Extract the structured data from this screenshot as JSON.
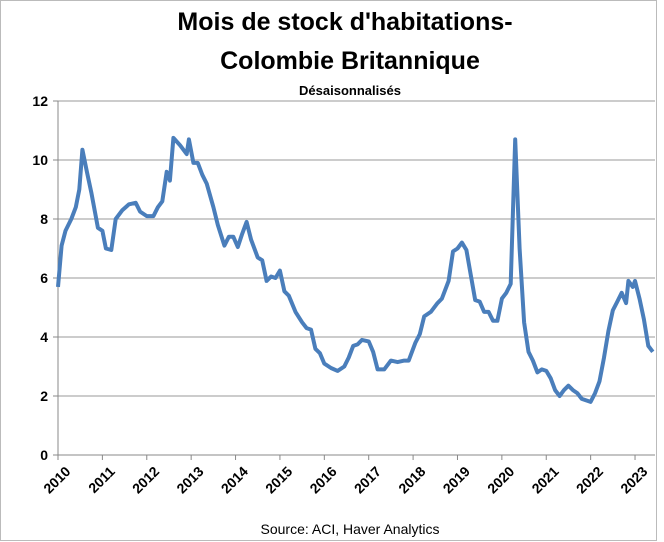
{
  "chart_data": {
    "type": "line",
    "title": [
      "Mois de stock d'habitations-",
      "Colombie Britannique"
    ],
    "subtitle": "Désaisonnalisés",
    "source": "Source: ACI, Haver Analytics",
    "xlim": [
      2010,
      2023.45
    ],
    "xticks": [
      2010,
      2011,
      2012,
      2013,
      2014,
      2015,
      2016,
      2017,
      2018,
      2019,
      2020,
      2021,
      2022,
      2023
    ],
    "ylim": [
      0,
      12
    ],
    "yticks": [
      0,
      2,
      4,
      6,
      8,
      10,
      12
    ],
    "grid": true,
    "series": [
      {
        "color": "#4a7ebb",
        "x": [
          2010.0,
          2010.08,
          2010.17,
          2010.3,
          2010.4,
          2010.48,
          2010.55,
          2010.65,
          2010.75,
          2010.9,
          2011.0,
          2011.08,
          2011.2,
          2011.3,
          2011.45,
          2011.6,
          2011.75,
          2011.85,
          2012.0,
          2012.15,
          2012.25,
          2012.35,
          2012.45,
          2012.52,
          2012.6,
          2012.75,
          2012.9,
          2012.95,
          2013.05,
          2013.15,
          2013.25,
          2013.35,
          2013.5,
          2013.6,
          2013.75,
          2013.85,
          2013.95,
          2014.05,
          2014.15,
          2014.25,
          2014.35,
          2014.5,
          2014.6,
          2014.7,
          2014.8,
          2014.9,
          2015.0,
          2015.1,
          2015.2,
          2015.35,
          2015.5,
          2015.6,
          2015.7,
          2015.8,
          2015.9,
          2016.0,
          2016.15,
          2016.3,
          2016.45,
          2016.55,
          2016.65,
          2016.75,
          2016.85,
          2017.0,
          2017.1,
          2017.2,
          2017.35,
          2017.5,
          2017.65,
          2017.8,
          2017.9,
          2018.05,
          2018.15,
          2018.25,
          2018.4,
          2018.55,
          2018.65,
          2018.8,
          2018.9,
          2019.0,
          2019.1,
          2019.2,
          2019.3,
          2019.4,
          2019.5,
          2019.6,
          2019.7,
          2019.8,
          2019.9,
          2020.0,
          2020.1,
          2020.2,
          2020.3,
          2020.4,
          2020.5,
          2020.6,
          2020.7,
          2020.8,
          2020.9,
          2021.0,
          2021.1,
          2021.2,
          2021.3,
          2021.4,
          2021.5,
          2021.6,
          2021.7,
          2021.8,
          2021.9,
          2022.0,
          2022.1,
          2022.2,
          2022.3,
          2022.4,
          2022.5,
          2022.6,
          2022.7,
          2022.8,
          2022.85,
          2022.95,
          2023.0,
          2023.1,
          2023.2,
          2023.3,
          2023.4
        ],
        "values": [
          5.7,
          7.1,
          7.6,
          8.0,
          8.4,
          9.0,
          10.35,
          9.6,
          8.9,
          7.7,
          7.6,
          7.0,
          6.95,
          8.0,
          8.3,
          8.5,
          8.55,
          8.25,
          8.1,
          8.1,
          8.4,
          8.6,
          9.6,
          9.3,
          10.75,
          10.5,
          10.2,
          10.7,
          9.9,
          9.9,
          9.5,
          9.2,
          8.4,
          7.8,
          7.1,
          7.4,
          7.4,
          7.05,
          7.5,
          7.9,
          7.3,
          6.7,
          6.6,
          5.9,
          6.05,
          6.0,
          6.25,
          5.55,
          5.4,
          4.85,
          4.5,
          4.3,
          4.25,
          3.6,
          3.45,
          3.1,
          2.95,
          2.85,
          3.0,
          3.3,
          3.7,
          3.75,
          3.9,
          3.85,
          3.5,
          2.9,
          2.9,
          3.2,
          3.15,
          3.2,
          3.2,
          3.8,
          4.1,
          4.7,
          4.85,
          5.15,
          5.3,
          5.9,
          6.9,
          7.0,
          7.2,
          6.95,
          6.1,
          5.25,
          5.2,
          4.85,
          4.85,
          4.55,
          4.55,
          5.3,
          5.5,
          5.8,
          10.7,
          7.0,
          4.5,
          3.5,
          3.2,
          2.8,
          2.9,
          2.85,
          2.6,
          2.2,
          2.0,
          2.2,
          2.35,
          2.2,
          2.1,
          1.9,
          1.85,
          1.8,
          2.1,
          2.5,
          3.3,
          4.2,
          4.9,
          5.2,
          5.5,
          5.15,
          5.9,
          5.7,
          5.9,
          5.3,
          4.6,
          3.7,
          3.5
        ]
      }
    ]
  }
}
